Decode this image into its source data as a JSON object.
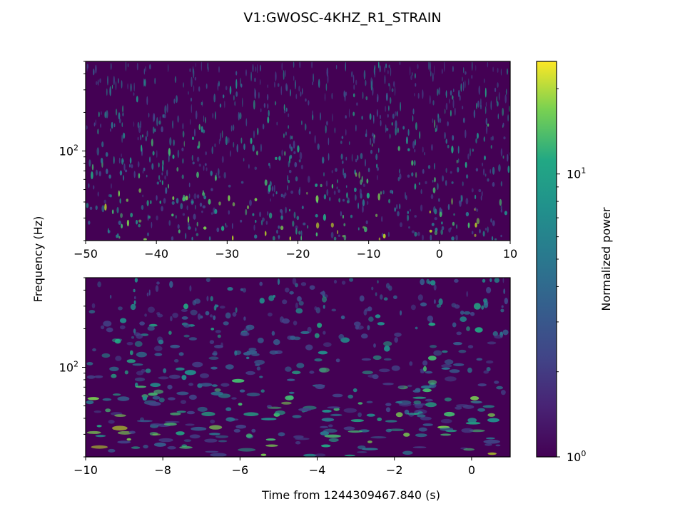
{
  "chart_data": {
    "type": "heatmap",
    "title": "V1:GWOSC-4KHZ_R1_STRAIN",
    "ylabel": "Frequency (Hz)",
    "xlabel": "Time from 1244309467.840 (s)",
    "y_scale": "log",
    "colorscale": "viridis",
    "panels": [
      {
        "name": "top",
        "xlim": [
          -50,
          10
        ],
        "ylim": [
          20,
          500
        ],
        "x_ticks": [
          -50,
          -40,
          -30,
          -20,
          -10,
          0,
          10
        ],
        "x_tick_labels": [
          "−50",
          "−40",
          "−30",
          "−20",
          "−10",
          "0",
          "10"
        ],
        "y_major_tick": {
          "value": 100,
          "base": "10",
          "exp": "2"
        }
      },
      {
        "name": "bottom",
        "xlim": [
          -10,
          1
        ],
        "ylim": [
          20,
          500
        ],
        "x_ticks": [
          -10,
          -8,
          -6,
          -4,
          -2,
          0
        ],
        "x_tick_labels": [
          "−10",
          "−8",
          "−6",
          "−4",
          "−2",
          "0"
        ],
        "y_major_tick": {
          "value": 100,
          "base": "10",
          "exp": "2"
        }
      }
    ],
    "colorbar": {
      "label": "Normalized power",
      "scale": "log",
      "range": [
        1,
        25
      ],
      "major_ticks": [
        {
          "value": 1,
          "base": "10",
          "exp": "0"
        },
        {
          "value": 10,
          "base": "10",
          "exp": "1"
        }
      ]
    }
  }
}
